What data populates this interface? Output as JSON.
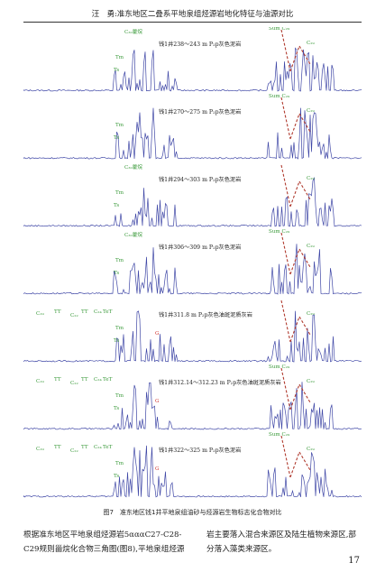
{
  "header": {
    "title": "汪　勇:准东地区二叠系平地泉组烃源岩地化特征与油源对比"
  },
  "figure": {
    "panels": [
      {
        "label": "钱1井238～243 m P₂p灰色泥岩",
        "annotations": [
          "C₃₀藿烷",
          "Tm",
          "Ts",
          "Sum C₂₉",
          "C₂₉"
        ]
      },
      {
        "label": "钱1井270～275 m P₂p灰色泥岩",
        "annotations": [
          "Tm",
          "Ts",
          "Sum C₂₉",
          "C₂₉"
        ]
      },
      {
        "label": "钱1井294～303 m P₂p灰色泥岩",
        "annotations": [
          "C₃₀藿烷",
          "Tm",
          "Ts",
          "C₂₉"
        ]
      },
      {
        "label": "钱1井306～309 m P₂p灰色泥岩",
        "annotations": [
          "C₃₀藿烷",
          "Tm",
          "Ts",
          "Sum C₂₉",
          "C₂₉"
        ]
      },
      {
        "label": "钱1井311.8 m P₂p灰色油斑泥质灰岩",
        "annotations": [
          "C₁₉",
          "TT",
          "C₂₂",
          "TT",
          "C₂₄",
          "TeT",
          "Tm",
          "Ts",
          "G",
          "C₂₉"
        ]
      },
      {
        "label": "钱1井312.14～312.23 m P₂p灰色油斑泥质灰岩",
        "annotations": [
          "C₁₉",
          "TT",
          "C₂₂",
          "TT",
          "C₂₄",
          "TeT",
          "Tm",
          "Ts",
          "G",
          "Sum C₂₉",
          "C₂₉"
        ]
      },
      {
        "label": "钱1井322～325 m P₂p灰色泥岩",
        "annotations": [
          "C₁₉",
          "TT",
          "C₂₂",
          "TT",
          "C₂₄",
          "TeT",
          "Tm",
          "Ts",
          "G",
          "Sum C₂₉",
          "C₂₉"
        ]
      }
    ]
  },
  "caption": "图7　准东地区钱1井平地泉组油砂与烃源岩生物标志化合物对比",
  "body_left": "根据准东地区平地泉组烃源岩5αααC27-C28-C29规则甾烷化合物三角图(图8),平地泉组烃源",
  "body_right": "岩主要落入混合来源区及陆生植物来源区,部分落入藻类来源区。",
  "page_number": "17",
  "colors": {
    "trace": "#3f47a6",
    "label_green": "#3a9a3a",
    "marker_red": "#d0302b",
    "dash": "#b03a2e"
  }
}
